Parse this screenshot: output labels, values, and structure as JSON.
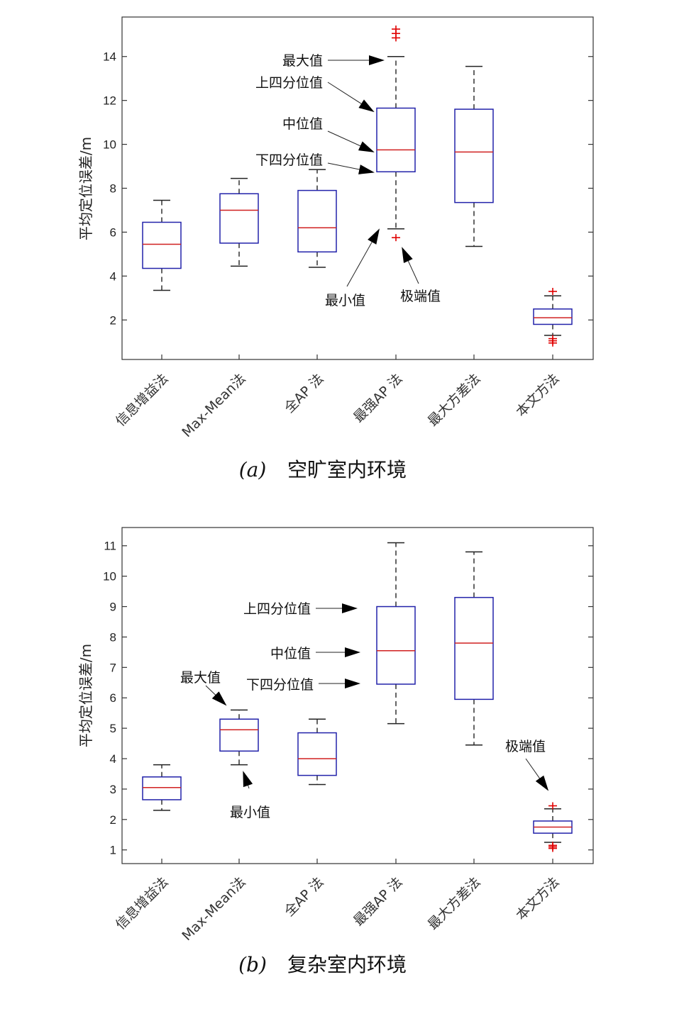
{
  "chart_data": [
    {
      "type": "box",
      "panel_label": "(a)",
      "caption": "空旷室内环境",
      "ylabel": "平均定位误差/m",
      "ylim": [
        0.2,
        15.8
      ],
      "yticks": [
        2,
        4,
        6,
        8,
        10,
        12,
        14
      ],
      "categories": [
        "信息增益法",
        "Max-Mean法",
        "全AP 法",
        "最强AP 法",
        "最大方差法",
        "本文方法"
      ],
      "boxes": [
        {
          "whislo": 3.35,
          "q1": 4.35,
          "med": 5.45,
          "q3": 6.45,
          "whishi": 7.45,
          "fliers": []
        },
        {
          "whislo": 4.45,
          "q1": 5.5,
          "med": 7.0,
          "q3": 7.75,
          "whishi": 8.45,
          "fliers": []
        },
        {
          "whislo": 4.4,
          "q1": 5.1,
          "med": 6.2,
          "q3": 7.9,
          "whishi": 8.85,
          "fliers": []
        },
        {
          "whislo": 6.15,
          "q1": 8.75,
          "med": 9.75,
          "q3": 11.65,
          "whishi": 14.0,
          "fliers": [
            5.75,
            14.85,
            15.05,
            15.25
          ]
        },
        {
          "whislo": 5.35,
          "q1": 7.35,
          "med": 9.65,
          "q3": 11.6,
          "whishi": 13.55,
          "fliers": []
        },
        {
          "whislo": 1.3,
          "q1": 1.8,
          "med": 2.1,
          "q3": 2.5,
          "whishi": 3.1,
          "fliers": [
            0.95,
            1.05,
            1.15,
            3.3
          ]
        }
      ],
      "annotations": [
        {
          "text": "最大值"
        },
        {
          "text": "上四分位值"
        },
        {
          "text": "中位值"
        },
        {
          "text": "下四分位值"
        },
        {
          "text": "最小值"
        },
        {
          "text": "极端值"
        }
      ]
    },
    {
      "type": "box",
      "panel_label": "(b)",
      "caption": "复杂室内环境",
      "ylabel": "平均定位误差/m",
      "ylim": [
        0.55,
        11.6
      ],
      "yticks": [
        1,
        2,
        3,
        4,
        5,
        6,
        7,
        8,
        9,
        10,
        11
      ],
      "categories": [
        "信息增益法",
        "Max-Mean法",
        "全AP 法",
        "最强AP 法",
        "最大方差法",
        "本文方法"
      ],
      "boxes": [
        {
          "whislo": 2.3,
          "q1": 2.65,
          "med": 3.05,
          "q3": 3.4,
          "whishi": 3.8,
          "fliers": []
        },
        {
          "whislo": 3.8,
          "q1": 4.25,
          "med": 4.95,
          "q3": 5.3,
          "whishi": 5.6,
          "fliers": []
        },
        {
          "whislo": 3.15,
          "q1": 3.45,
          "med": 4.0,
          "q3": 4.85,
          "whishi": 5.3,
          "fliers": []
        },
        {
          "whislo": 5.15,
          "q1": 6.45,
          "med": 7.55,
          "q3": 9.0,
          "whishi": 11.1,
          "fliers": []
        },
        {
          "whislo": 4.45,
          "q1": 5.95,
          "med": 7.8,
          "q3": 9.3,
          "whishi": 10.8,
          "fliers": []
        },
        {
          "whislo": 1.25,
          "q1": 1.55,
          "med": 1.75,
          "q3": 1.95,
          "whishi": 2.35,
          "fliers": [
            1.05,
            1.1,
            1.15,
            2.45
          ]
        }
      ],
      "annotations": [
        {
          "text": "上四分位值"
        },
        {
          "text": "中位值"
        },
        {
          "text": "下四分位值"
        },
        {
          "text": "最大值"
        },
        {
          "text": "最小值"
        },
        {
          "text": "极端值"
        }
      ]
    }
  ]
}
